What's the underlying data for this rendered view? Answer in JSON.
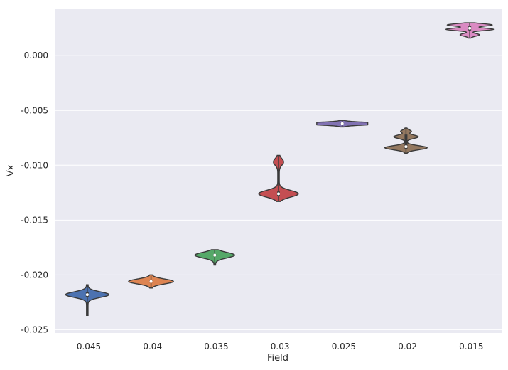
{
  "chart_data": {
    "type": "violin",
    "xlabel": "Field",
    "ylabel": "Vx",
    "categories": [
      "-0.045",
      "-0.04",
      "-0.035",
      "-0.03",
      "-0.025",
      "-0.02",
      "-0.015"
    ],
    "y_ticks": [
      "0.000",
      "-0.005",
      "-0.010",
      "-0.015",
      "-0.020",
      "-0.025"
    ],
    "y_tick_values": [
      0.0,
      -0.005,
      -0.01,
      -0.015,
      -0.02,
      -0.025
    ],
    "ylim": [
      -0.0253,
      0.0043
    ],
    "grid": true,
    "colors": [
      "#4c72b0",
      "#dd8452",
      "#55a868",
      "#c44e52",
      "#8172b3",
      "#937860",
      "#da8bc3"
    ],
    "background": "#eaeaf2",
    "violins": [
      {
        "category": "-0.045",
        "min": -0.0237,
        "max": -0.0209,
        "median": -0.0218,
        "q1": -0.022,
        "q3": -0.0216,
        "peaks": [
          {
            "y": -0.0218,
            "w": 0.82,
            "s": 0.00025
          }
        ]
      },
      {
        "category": "-0.04",
        "min": -0.0212,
        "max": -0.02,
        "median": -0.0206,
        "q1": -0.0207,
        "q3": -0.0205,
        "peaks": [
          {
            "y": -0.0206,
            "w": 0.85,
            "s": 0.00022
          }
        ]
      },
      {
        "category": "-0.035",
        "min": -0.0191,
        "max": -0.0177,
        "median": -0.0182,
        "q1": -0.0183,
        "q3": -0.0181,
        "peaks": [
          {
            "y": -0.0182,
            "w": 0.75,
            "s": 0.00025
          }
        ]
      },
      {
        "category": "-0.03",
        "min": -0.0133,
        "max": -0.0091,
        "median": -0.0126,
        "q1": -0.0128,
        "q3": -0.0124,
        "peaks": [
          {
            "y": -0.0126,
            "w": 0.75,
            "s": 0.0003
          },
          {
            "y": -0.0097,
            "w": 0.17,
            "s": 0.0003
          }
        ]
      },
      {
        "category": "-0.025",
        "min": -0.0065,
        "max": -0.0059,
        "median": -0.0062,
        "q1": -0.0063,
        "q3": -0.0061,
        "peaks": [
          {
            "y": -0.0062,
            "w": 1.75,
            "s": 0.00011
          }
        ]
      },
      {
        "category": "-0.02",
        "min": -0.0089,
        "max": -0.0066,
        "median": -0.0083,
        "q1": -0.0085,
        "q3": -0.0072,
        "peaks": [
          {
            "y": -0.0084,
            "w": 0.8,
            "s": 0.00018
          },
          {
            "y": -0.0074,
            "w": 0.45,
            "s": 0.00016
          },
          {
            "y": -0.0069,
            "w": 0.18,
            "s": 0.00012
          }
        ]
      },
      {
        "category": "-0.015",
        "min": 0.0016,
        "max": 0.003,
        "median": 0.0025,
        "q1": 0.0023,
        "q3": 0.0027,
        "peaks": [
          {
            "y": 0.0028,
            "w": 0.85,
            "s": 0.00011
          },
          {
            "y": 0.0024,
            "w": 0.9,
            "s": 0.00011
          },
          {
            "y": 0.0019,
            "w": 0.35,
            "s": 0.00012
          }
        ]
      }
    ]
  }
}
